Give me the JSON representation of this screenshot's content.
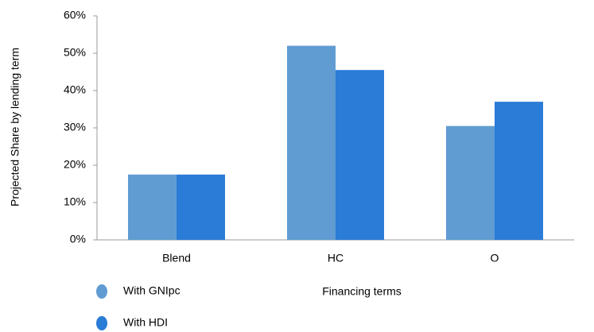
{
  "chart_data": {
    "type": "bar",
    "categories": [
      "Blend",
      "HC",
      "O"
    ],
    "series": [
      {
        "name": "With GNIpc",
        "color": "#609cd2",
        "values": [
          17.5,
          52,
          30.5
        ]
      },
      {
        "name": "With HDI",
        "color": "#2a7cd6",
        "values": [
          17.5,
          45.5,
          37
        ]
      }
    ],
    "x_label": "Financing terms",
    "y_label": "Projected Share by lending term",
    "ylim": [
      0,
      60
    ],
    "yticks": [
      {
        "value": 0,
        "label": "0%"
      },
      {
        "value": 10,
        "label": "10%"
      },
      {
        "value": 20,
        "label": "20%"
      },
      {
        "value": 30,
        "label": "30%"
      },
      {
        "value": 40,
        "label": "40%"
      },
      {
        "value": 50,
        "label": "50%"
      },
      {
        "value": 60,
        "label": "60%"
      }
    ],
    "grid": false
  }
}
